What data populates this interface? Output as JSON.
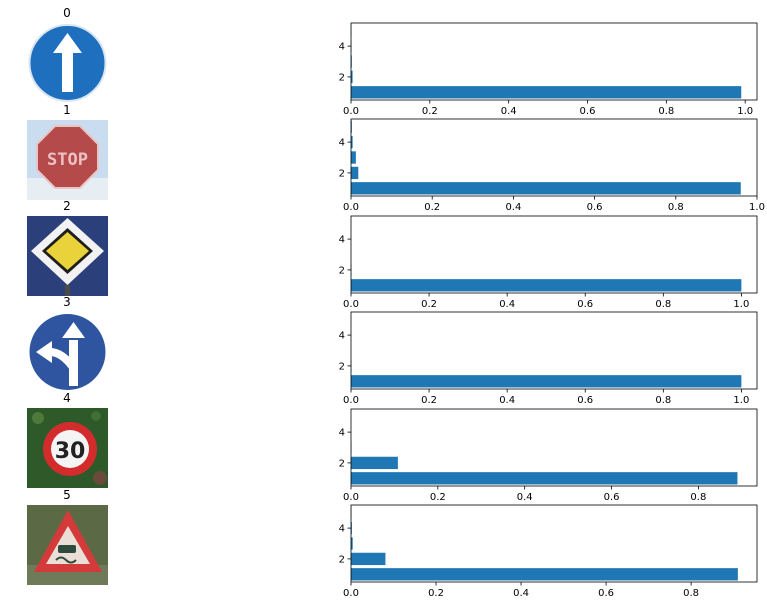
{
  "chart_data": [
    {
      "type": "bar",
      "orientation": "horizontal",
      "title": "0",
      "categories": [
        1,
        2,
        3,
        4,
        5
      ],
      "values": [
        0.99,
        0.004,
        0.002,
        0.001,
        0.001
      ],
      "xlim": [
        0,
        1.03
      ],
      "ylim": [
        0.5,
        5.5
      ],
      "xticks": [
        "0.0",
        "0.2",
        "0.4",
        "0.6",
        "0.8",
        "1.0"
      ],
      "yticks": [
        "2",
        "4"
      ],
      "color": "#1f77b4"
    },
    {
      "type": "bar",
      "orientation": "horizontal",
      "title": "1",
      "categories": [
        1,
        2,
        3,
        4,
        5
      ],
      "values": [
        0.96,
        0.018,
        0.012,
        0.004,
        0.002
      ],
      "xlim": [
        0,
        1.0
      ],
      "ylim": [
        0.5,
        5.5
      ],
      "xticks": [
        "0.0",
        "0.2",
        "0.4",
        "0.6",
        "0.8",
        "1.0"
      ],
      "yticks": [
        "2",
        "4"
      ],
      "color": "#1f77b4"
    },
    {
      "type": "bar",
      "orientation": "horizontal",
      "title": "2",
      "categories": [
        1,
        2,
        3,
        4,
        5
      ],
      "values": [
        1.0,
        0.001,
        0.0,
        0.0,
        0.0
      ],
      "xlim": [
        0,
        1.04
      ],
      "ylim": [
        0.5,
        5.5
      ],
      "xticks": [
        "0.0",
        "0.2",
        "0.4",
        "0.6",
        "0.8",
        "1.0"
      ],
      "yticks": [
        "2",
        "4"
      ],
      "color": "#1f77b4"
    },
    {
      "type": "bar",
      "orientation": "horizontal",
      "title": "3",
      "categories": [
        1,
        2,
        3,
        4,
        5
      ],
      "values": [
        1.0,
        0.001,
        0.0,
        0.0,
        0.0
      ],
      "xlim": [
        0,
        1.04
      ],
      "ylim": [
        0.5,
        5.5
      ],
      "xticks": [
        "0.0",
        "0.2",
        "0.4",
        "0.6",
        "0.8",
        "1.0"
      ],
      "yticks": [
        "2",
        "4"
      ],
      "color": "#1f77b4"
    },
    {
      "type": "bar",
      "orientation": "horizontal",
      "title": "4",
      "categories": [
        1,
        2,
        3,
        4,
        5
      ],
      "values": [
        0.89,
        0.108,
        0.001,
        0.0,
        0.0
      ],
      "xlim": [
        0,
        0.935
      ],
      "ylim": [
        0.5,
        5.5
      ],
      "xticks": [
        "0.0",
        "0.2",
        "0.4",
        "0.6",
        "0.8"
      ],
      "yticks": [
        "2",
        "4"
      ],
      "color": "#1f77b4"
    },
    {
      "type": "bar",
      "orientation": "horizontal",
      "title": "5",
      "categories": [
        1,
        2,
        3,
        4,
        5
      ],
      "values": [
        0.91,
        0.081,
        0.004,
        0.002,
        0.001
      ],
      "xlim": [
        0,
        0.955
      ],
      "ylim": [
        0.5,
        5.5
      ],
      "xticks": [
        "0.0",
        "0.2",
        "0.4",
        "0.6",
        "0.8"
      ],
      "yticks": [
        "2",
        "4"
      ],
      "color": "#1f77b4"
    }
  ],
  "images": [
    {
      "label": "0",
      "icon": "ahead-only-sign-icon",
      "colors": {
        "bg": "#ffffff",
        "disc": "#1f6fbf",
        "arrow": "#ffffff"
      }
    },
    {
      "label": "1",
      "icon": "stop-sign-icon",
      "text": "STOP",
      "colors": {
        "bg": "#c9dcf0",
        "octagon": "#b54a4a",
        "text": "#e9c0c0"
      }
    },
    {
      "label": "2",
      "icon": "priority-road-sign-icon",
      "colors": {
        "bg": "#2b3f7a",
        "outer": "#f2f2f2",
        "inner": "#e9d23a"
      }
    },
    {
      "label": "3",
      "icon": "ahead-or-left-sign-icon",
      "colors": {
        "bg": "#ffffff",
        "disc": "#2f55a0",
        "arrow": "#ffffff"
      }
    },
    {
      "label": "4",
      "icon": "speed-limit-30-sign-icon",
      "text": "30",
      "colors": {
        "bg": "#2e5a2a",
        "ring": "#d22c2c",
        "face": "#f4f4f4",
        "text": "#222222"
      }
    },
    {
      "label": "5",
      "icon": "slippery-road-warning-sign-icon",
      "colors": {
        "bg": "#5b6a45",
        "border": "#d43a3a",
        "face": "#eadfd6",
        "symbol": "#2e4a3a"
      }
    }
  ]
}
